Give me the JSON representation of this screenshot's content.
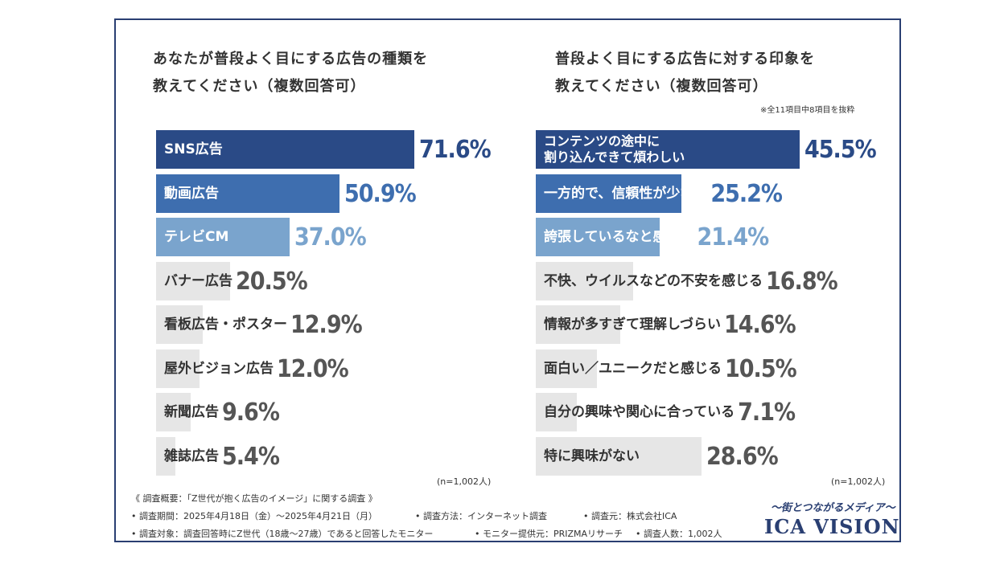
{
  "chart_data": [
    {
      "type": "bar",
      "title": "あなたが普段よく目にする広告の種類を\n教えてください（複数回答可）",
      "categories": [
        "SNS広告",
        "動画広告",
        "テレビCM",
        "バナー広告",
        "看板広告・ポスター",
        "屋外ビジョン広告",
        "新聞広告",
        "雑誌広告"
      ],
      "values": [
        71.6,
        50.9,
        37.0,
        20.5,
        12.9,
        12.0,
        9.6,
        5.4
      ],
      "value_labels": [
        "71.6%",
        "50.9%",
        "37.0%",
        "20.5%",
        "12.9%",
        "12.0%",
        "9.6%",
        "5.4%"
      ],
      "colors": [
        "#2a4a86",
        "#3e6eaf",
        "#7aa4cd",
        "#e6e6e6",
        "#e6e6e6",
        "#e6e6e6",
        "#e6e6e6",
        "#e6e6e6"
      ],
      "pct_colors": [
        "#2a4a86",
        "#3e6eaf",
        "#7aa4cd",
        "#555555",
        "#555555",
        "#555555",
        "#555555",
        "#555555"
      ],
      "label_colors": [
        "#ffffff",
        "#ffffff",
        "#ffffff",
        "#333333",
        "#333333",
        "#333333",
        "#333333",
        "#333333"
      ],
      "xlim": [
        0,
        100
      ],
      "n_label": "(n=1,002人)"
    },
    {
      "type": "bar",
      "title": "普段よく目にする広告に対する印象を\n教えてください（複数回答可）",
      "note": "※全11項目中8項目を抜粋",
      "categories": [
        "コンテンツの途中に\n割り込んできて煩わしい",
        "一方的で、信頼性が少ない",
        "誇張しているなと感じる",
        "不快、ウイルスなどの不安を感じる",
        "情報が多すぎて理解しづらい",
        "面白い／ユニークだと感じる",
        "自分の興味や関心に合っている",
        "特に興味がない"
      ],
      "values": [
        45.5,
        25.2,
        21.4,
        16.8,
        14.6,
        10.5,
        7.1,
        28.6
      ],
      "value_labels": [
        "45.5%",
        "25.2%",
        "21.4%",
        "16.8%",
        "14.6%",
        "10.5%",
        "7.1%",
        "28.6%"
      ],
      "colors": [
        "#2a4a86",
        "#3e6eaf",
        "#7aa4cd",
        "#e6e6e6",
        "#e6e6e6",
        "#e6e6e6",
        "#e6e6e6",
        "#e6e6e6"
      ],
      "pct_colors": [
        "#2a4a86",
        "#3e6eaf",
        "#7aa4cd",
        "#555555",
        "#555555",
        "#555555",
        "#555555",
        "#555555"
      ],
      "label_colors": [
        "#ffffff",
        "#ffffff",
        "#ffffff",
        "#333333",
        "#333333",
        "#333333",
        "#333333",
        "#333333"
      ],
      "xlim": [
        0,
        100
      ],
      "n_label": "(n=1,002人)"
    }
  ],
  "footer": {
    "line1": "《 調査概要：「Z世代が抱く広告のイメージ」に関する調査 》",
    "line2a": "• 調査期間：2025年4月18日（金）〜2025年4月21日（月）",
    "line2b": "• 調査方法：インターネット調査",
    "line2c": "• 調査元：株式会社ICA",
    "line3a": "• 調査対象：調査回答時にZ世代（18歳〜27歳）であると回答したモニター",
    "line3b": "• モニター提供元：PRIZMAリサーチ",
    "line3c": "• 調査人数：1,002人"
  },
  "brand": {
    "tagline": "〜街とつながるメディア〜",
    "logo": "ICA VISION"
  }
}
